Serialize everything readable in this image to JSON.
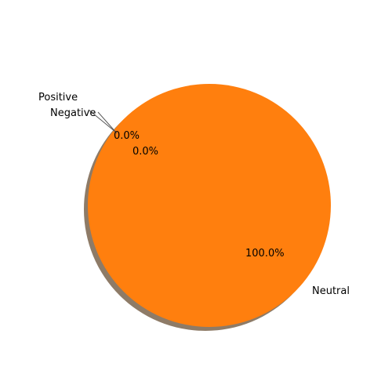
{
  "chart_data": {
    "type": "pie",
    "slices": [
      {
        "label": "Positive",
        "value": 0.0,
        "pct_label": "0.0%",
        "color": "#1f77b4"
      },
      {
        "label": "Negative",
        "value": 0.0,
        "pct_label": "0.0%",
        "color": "#2ca02c"
      },
      {
        "label": "Neutral",
        "value": 100.0,
        "pct_label": "100.0%",
        "color": "#ff7f0e"
      }
    ],
    "shadow": true,
    "explode": true,
    "edge_color": "#ffffff",
    "shadow_color": "#8e7b67"
  }
}
